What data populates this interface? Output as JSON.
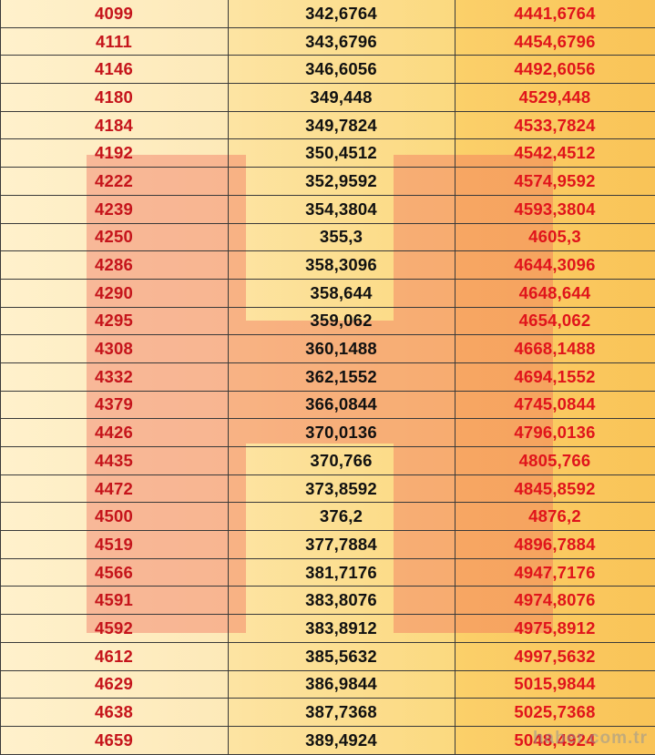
{
  "table": {
    "rows": [
      {
        "a": "4099",
        "b": "342,6764",
        "c": "4441,6764"
      },
      {
        "a": "4111",
        "b": "343,6796",
        "c": "4454,6796"
      },
      {
        "a": "4146",
        "b": "346,6056",
        "c": "4492,6056"
      },
      {
        "a": "4180",
        "b": "349,448",
        "c": "4529,448"
      },
      {
        "a": "4184",
        "b": "349,7824",
        "c": "4533,7824"
      },
      {
        "a": "4192",
        "b": "350,4512",
        "c": "4542,4512"
      },
      {
        "a": "4222",
        "b": "352,9592",
        "c": "4574,9592"
      },
      {
        "a": "4239",
        "b": "354,3804",
        "c": "4593,3804"
      },
      {
        "a": "4250",
        "b": "355,3",
        "c": "4605,3"
      },
      {
        "a": "4286",
        "b": "358,3096",
        "c": "4644,3096"
      },
      {
        "a": "4290",
        "b": "358,644",
        "c": "4648,644"
      },
      {
        "a": "4295",
        "b": "359,062",
        "c": "4654,062"
      },
      {
        "a": "4308",
        "b": "360,1488",
        "c": "4668,1488"
      },
      {
        "a": "4332",
        "b": "362,1552",
        "c": "4694,1552"
      },
      {
        "a": "4379",
        "b": "366,0844",
        "c": "4745,0844"
      },
      {
        "a": "4426",
        "b": "370,0136",
        "c": "4796,0136"
      },
      {
        "a": "4435",
        "b": "370,766",
        "c": "4805,766"
      },
      {
        "a": "4472",
        "b": "373,8592",
        "c": "4845,8592"
      },
      {
        "a": "4500",
        "b": "376,2",
        "c": "4876,2"
      },
      {
        "a": "4519",
        "b": "377,7884",
        "c": "4896,7884"
      },
      {
        "a": "4566",
        "b": "381,7176",
        "c": "4947,7176"
      },
      {
        "a": "4591",
        "b": "383,8076",
        "c": "4974,8076"
      },
      {
        "a": "4592",
        "b": "383,8912",
        "c": "4975,8912"
      },
      {
        "a": "4612",
        "b": "385,5632",
        "c": "4997,5632"
      },
      {
        "a": "4629",
        "b": "386,9844",
        "c": "5015,9844"
      },
      {
        "a": "4638",
        "b": "387,7368",
        "c": "5025,7368"
      },
      {
        "a": "4659",
        "b": "389,4924",
        "c": "5048,4924"
      }
    ]
  },
  "watermark": {
    "logo_letter": "H",
    "site_text": "haber.com.tr"
  },
  "colors": {
    "first_col_text": "#c5141b",
    "middle_col_text": "#111111",
    "last_col_text": "#e0141b"
  }
}
